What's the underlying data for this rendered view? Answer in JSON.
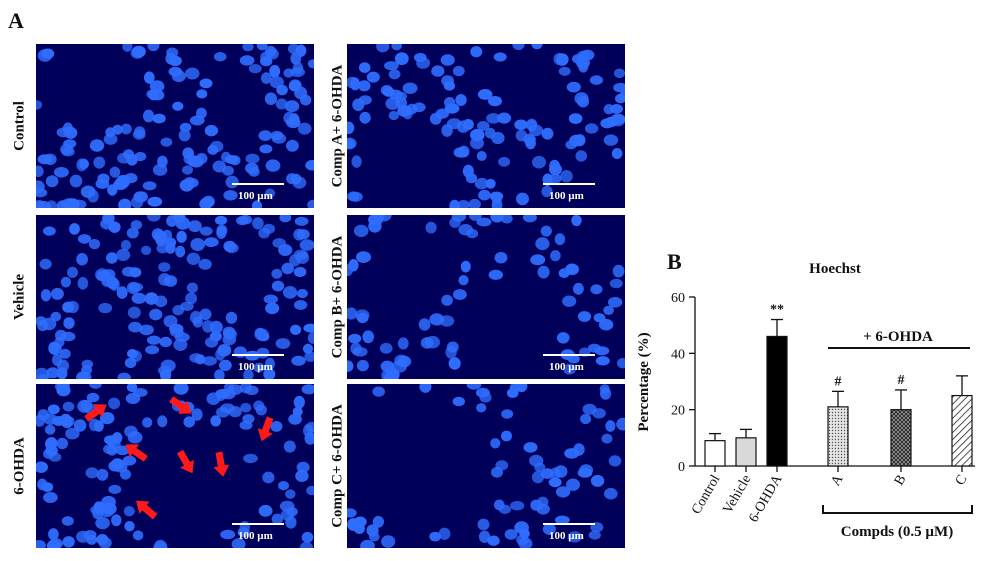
{
  "figure": {
    "panel_a_label": "A",
    "panel_b_label": "B",
    "scale_bar_text": "100 µm",
    "micrographs": [
      {
        "label": "Control"
      },
      {
        "label": "Vehicle"
      },
      {
        "label": "6-OHDA"
      },
      {
        "label": "Comp A+ 6-OHDA"
      },
      {
        "label": "Comp B+ 6-OHDA"
      },
      {
        "label": "Comp C+ 6-OHDA"
      }
    ],
    "colors": {
      "nuclei_background": "#00005a",
      "nuclei": "#2f6dff",
      "arrow": "#ff1a1a"
    }
  },
  "chart_data": {
    "type": "bar",
    "title": "Hoechst",
    "ylabel": "Percentage (%)",
    "ylim": [
      0,
      60
    ],
    "yticks": [
      0,
      20,
      40,
      60
    ],
    "categories": [
      "Control",
      "Vehicle",
      "6-OHDA",
      "A",
      "B",
      "C"
    ],
    "values": [
      9,
      10,
      46,
      21,
      20,
      25
    ],
    "errors": [
      2.5,
      3,
      6,
      5.5,
      7,
      7
    ],
    "significance": [
      "",
      "",
      "**",
      "#",
      "#",
      ""
    ],
    "bar_styles": [
      "white",
      "lightgray",
      "black",
      "dotted",
      "crosshatch",
      "diagonal"
    ],
    "group_label_top": "+ 6-OHDA",
    "group_label_bottom": "Compds (0.5 µM)"
  }
}
